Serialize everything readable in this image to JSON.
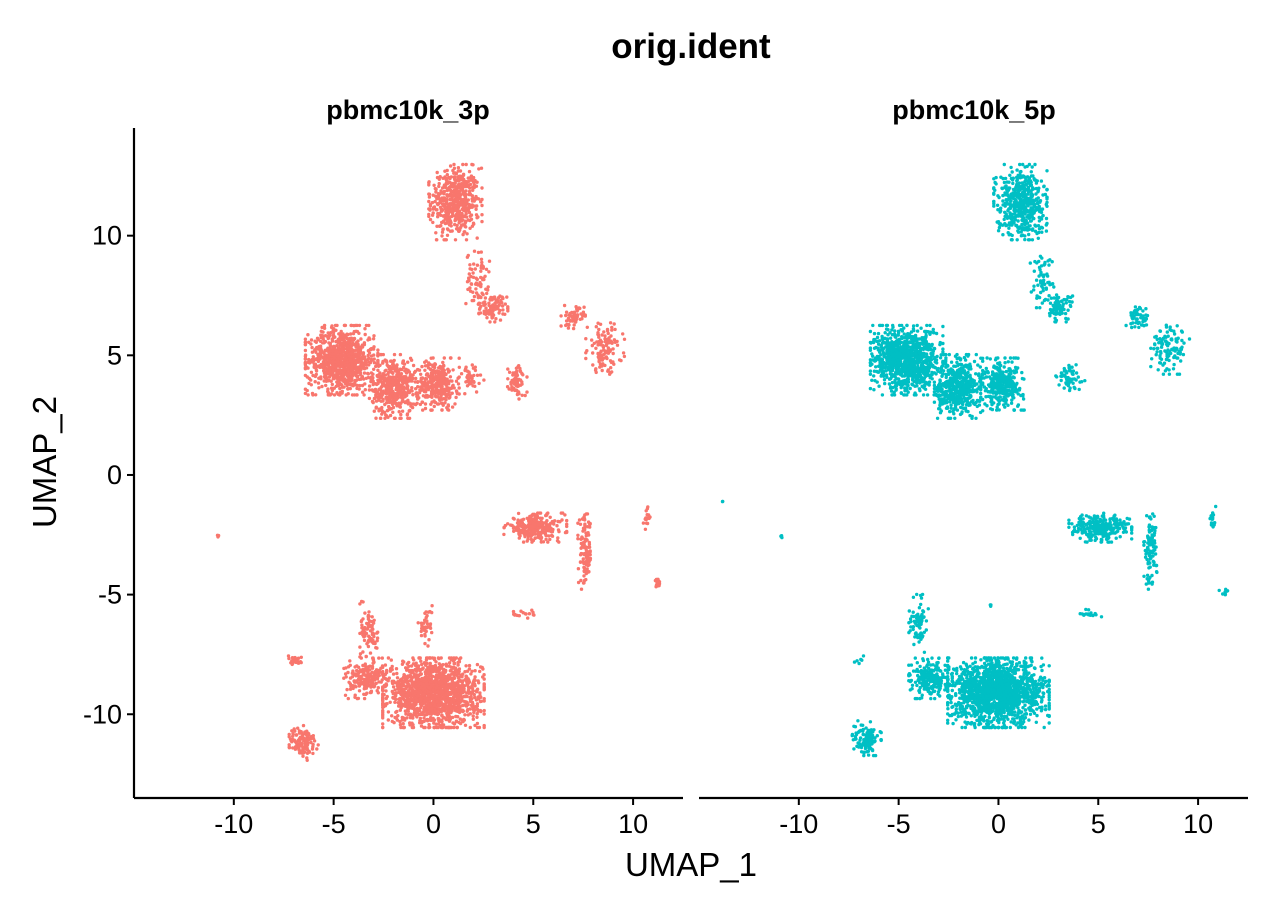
{
  "chart_data": {
    "type": "scatter",
    "title": "orig.ident",
    "xlabel": "UMAP_1",
    "ylabel": "UMAP_2",
    "xlim": [
      -15,
      12.5
    ],
    "ylim": [
      -13.5,
      14.5
    ],
    "xticks": [
      -10,
      -5,
      0,
      5,
      10
    ],
    "yticks": [
      -10,
      -5,
      0,
      5,
      10
    ],
    "grid": false,
    "legend": "none",
    "facets": [
      {
        "name": "pbmc10k_3p",
        "color": "#F8766D",
        "clusters": [
          {
            "center": [
              1.1,
              11.4
            ],
            "spread": [
              1.1,
              1.3
            ],
            "n": 520
          },
          {
            "center": [
              2.2,
              8.2
            ],
            "spread": [
              0.5,
              1.0
            ],
            "n": 70
          },
          {
            "center": [
              3.0,
              7.0
            ],
            "spread": [
              0.6,
              0.5
            ],
            "n": 90
          },
          {
            "center": [
              -4.6,
              4.8
            ],
            "spread": [
              1.5,
              1.2
            ],
            "n": 900
          },
          {
            "center": [
              -2.0,
              3.7
            ],
            "spread": [
              1.0,
              1.1
            ],
            "n": 450
          },
          {
            "center": [
              0.2,
              3.8
            ],
            "spread": [
              0.9,
              0.9
            ],
            "n": 320
          },
          {
            "center": [
              1.8,
              4.0
            ],
            "spread": [
              0.6,
              0.6
            ],
            "n": 40
          },
          {
            "center": [
              4.2,
              3.9
            ],
            "spread": [
              0.4,
              0.6
            ],
            "n": 70
          },
          {
            "center": [
              7.0,
              6.6
            ],
            "spread": [
              0.5,
              0.4
            ],
            "n": 60
          },
          {
            "center": [
              8.6,
              5.3
            ],
            "spread": [
              0.8,
              0.9
            ],
            "n": 120
          },
          {
            "center": [
              5.1,
              -2.2
            ],
            "spread": [
              1.3,
              0.5
            ],
            "n": 260
          },
          {
            "center": [
              7.6,
              -3.2
            ],
            "spread": [
              0.3,
              1.3
            ],
            "n": 110
          },
          {
            "center": [
              10.7,
              -1.8
            ],
            "spread": [
              0.15,
              0.4
            ],
            "n": 18
          },
          {
            "center": [
              11.2,
              -4.5
            ],
            "spread": [
              0.15,
              0.3
            ],
            "n": 14
          },
          {
            "center": [
              4.6,
              -5.8
            ],
            "spread": [
              0.6,
              0.15
            ],
            "n": 16
          },
          {
            "center": [
              -10.8,
              -2.6
            ],
            "spread": [
              0.08,
              0.08
            ],
            "n": 3
          },
          {
            "center": [
              0.0,
              -9.1
            ],
            "spread": [
              2.1,
              1.2
            ],
            "n": 1500
          },
          {
            "center": [
              -3.4,
              -8.5
            ],
            "spread": [
              0.9,
              0.7
            ],
            "n": 200
          },
          {
            "center": [
              -3.2,
              -6.5
            ],
            "spread": [
              0.4,
              1.0
            ],
            "n": 80
          },
          {
            "center": [
              -0.4,
              -6.3
            ],
            "spread": [
              0.3,
              0.7
            ],
            "n": 40
          },
          {
            "center": [
              -6.9,
              -7.8
            ],
            "spread": [
              0.3,
              0.2
            ],
            "n": 22
          },
          {
            "center": [
              -6.5,
              -11.2
            ],
            "spread": [
              0.6,
              0.6
            ],
            "n": 120
          }
        ]
      },
      {
        "name": "pbmc10k_5p",
        "color": "#00BFC4",
        "clusters": [
          {
            "center": [
              1.1,
              11.4
            ],
            "spread": [
              1.1,
              1.3
            ],
            "n": 500
          },
          {
            "center": [
              2.2,
              8.2
            ],
            "spread": [
              0.5,
              1.0
            ],
            "n": 60
          },
          {
            "center": [
              3.0,
              7.0
            ],
            "spread": [
              0.6,
              0.5
            ],
            "n": 80
          },
          {
            "center": [
              -4.6,
              4.8
            ],
            "spread": [
              1.5,
              1.2
            ],
            "n": 950
          },
          {
            "center": [
              -2.0,
              3.7
            ],
            "spread": [
              1.0,
              1.1
            ],
            "n": 480
          },
          {
            "center": [
              0.2,
              3.8
            ],
            "spread": [
              0.9,
              0.9
            ],
            "n": 340
          },
          {
            "center": [
              3.6,
              4.0
            ],
            "spread": [
              0.6,
              0.5
            ],
            "n": 60
          },
          {
            "center": [
              7.0,
              6.6
            ],
            "spread": [
              0.5,
              0.4
            ],
            "n": 55
          },
          {
            "center": [
              8.6,
              5.3
            ],
            "spread": [
              0.8,
              0.9
            ],
            "n": 110
          },
          {
            "center": [
              5.1,
              -2.2
            ],
            "spread": [
              1.3,
              0.5
            ],
            "n": 280
          },
          {
            "center": [
              7.6,
              -3.2
            ],
            "spread": [
              0.3,
              1.3
            ],
            "n": 100
          },
          {
            "center": [
              10.7,
              -1.8
            ],
            "spread": [
              0.15,
              0.4
            ],
            "n": 20
          },
          {
            "center": [
              11.3,
              -4.9
            ],
            "spread": [
              0.2,
              0.1
            ],
            "n": 8
          },
          {
            "center": [
              4.6,
              -5.8
            ],
            "spread": [
              0.6,
              0.15
            ],
            "n": 16
          },
          {
            "center": [
              -13.8,
              -1.1
            ],
            "spread": [
              0.05,
              0.05
            ],
            "n": 2
          },
          {
            "center": [
              -10.8,
              -2.6
            ],
            "spread": [
              0.08,
              0.08
            ],
            "n": 3
          },
          {
            "center": [
              -0.4,
              -5.4
            ],
            "spread": [
              0.1,
              0.1
            ],
            "n": 3
          },
          {
            "center": [
              0.0,
              -9.1
            ],
            "spread": [
              2.1,
              1.2
            ],
            "n": 1600
          },
          {
            "center": [
              -3.4,
              -8.5
            ],
            "spread": [
              0.9,
              0.7
            ],
            "n": 220
          },
          {
            "center": [
              -4.0,
              -6.2
            ],
            "spread": [
              0.4,
              1.0
            ],
            "n": 70
          },
          {
            "center": [
              -6.9,
              -7.8
            ],
            "spread": [
              0.3,
              0.2
            ],
            "n": 6
          },
          {
            "center": [
              -6.6,
              -11.0
            ],
            "spread": [
              0.6,
              0.6
            ],
            "n": 110
          }
        ]
      }
    ]
  }
}
